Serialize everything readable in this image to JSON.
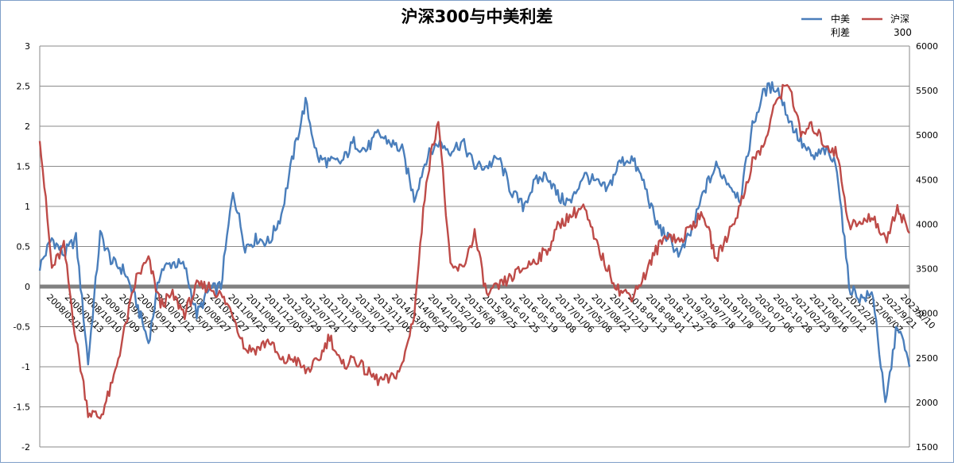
{
  "chart_data": {
    "type": "line",
    "title": "沪深300与中美利差",
    "legend": {
      "placement": "top-right",
      "entries": [
        "中美利差",
        "沪深300"
      ]
    },
    "grid": {
      "horizontal": true,
      "vertical": false
    },
    "y_left": {
      "min": -2,
      "max": 3,
      "ticks": [
        "3",
        "2.5",
        "2",
        "1.5",
        "1",
        "0.5",
        "0",
        "-0.5",
        "-1",
        "-1.5",
        "-2"
      ]
    },
    "y_right": {
      "min": 1500,
      "max": 6000,
      "ticks": [
        "6000",
        "5500",
        "5000",
        "4500",
        "4000",
        "3500",
        "3000",
        "2500",
        "2000",
        "1500"
      ]
    },
    "x_ticks": [
      "2008/02/19",
      "2008/06/13",
      "2008/10/10",
      "2009/02/09",
      "2009/06/02",
      "2009/09/15",
      "2010/01/12",
      "2010/05/07",
      "2010/08/27",
      "2010/12/27",
      "2011/04/25",
      "2011/08/10",
      "2011/12/05",
      "2012/03/29",
      "2012/07/24",
      "2012/11/15",
      "2013/03/15",
      "2013/07/12",
      "2013/11/06",
      "2014/03/05",
      "2014/06/25",
      "2014/10/20",
      "2015/2/10",
      "2015/6/8",
      "2015/9/25",
      "2016-01-25",
      "2016-05-19",
      "2016-09-08",
      "2017/01/06",
      "2017/05/08",
      "2017/08/22",
      "2017/12/13",
      "2018-04-13",
      "2018-08-01",
      "2018-11-27",
      "2019/3/26",
      "2019/7/18",
      "2019/11/8",
      "2020/03/10",
      "2020-07-06",
      "2020-10-28",
      "2021/02/23",
      "2021/06/16",
      "2021/10/12",
      "2022/2/8",
      "2022/06/07",
      "2022/9/21",
      "2023/1/10"
    ],
    "series": [
      {
        "name": "中美利差",
        "axis": "left",
        "color": "#4A7EBB",
        "values": [
          0.25,
          0.6,
          0.4,
          0.6,
          -0.95,
          0.65,
          0.3,
          0.2,
          -0.2,
          -0.7,
          0.2,
          0.3,
          0.25,
          -0.35,
          -0.05,
          0.0,
          1.2,
          0.5,
          0.6,
          0.55,
          0.9,
          1.65,
          2.3,
          1.6,
          1.55,
          1.55,
          1.8,
          1.7,
          1.9,
          1.8,
          1.7,
          1.1,
          1.6,
          1.8,
          1.7,
          1.8,
          1.5,
          1.5,
          1.6,
          1.2,
          1.0,
          1.3,
          1.4,
          1.1,
          1.05,
          1.4,
          1.3,
          1.2,
          1.55,
          1.6,
          1.3,
          0.8,
          0.6,
          0.4,
          0.7,
          1.2,
          1.5,
          1.3,
          1.1,
          2.0,
          2.45,
          2.5,
          2.1,
          1.8,
          1.6,
          1.7,
          1.5,
          0.0,
          -0.15,
          -0.1,
          -1.5,
          -0.45,
          -1.0
        ]
      },
      {
        "name": "沪深300",
        "axis": "right",
        "color": "#BE4B48",
        "values": [
          5000,
          3500,
          3750,
          2700,
          1900,
          1830,
          2200,
          2800,
          3400,
          3600,
          3100,
          3200,
          3000,
          3300,
          3300,
          3200,
          3000,
          2600,
          2600,
          2700,
          2450,
          2500,
          2350,
          2450,
          2750,
          2400,
          2500,
          2350,
          2250,
          2250,
          2400,
          3000,
          4500,
          5200,
          3500,
          3500,
          3900,
          3200,
          3300,
          3400,
          3500,
          3600,
          3700,
          4000,
          4100,
          4200,
          3800,
          3500,
          3250,
          3200,
          3400,
          3700,
          3900,
          3800,
          4000,
          4100,
          3600,
          3900,
          4200,
          4700,
          4900,
          5400,
          5600,
          5000,
          5100,
          4900,
          4800,
          4000,
          4000,
          4100,
          3800,
          4200,
          3900
        ]
      }
    ]
  }
}
